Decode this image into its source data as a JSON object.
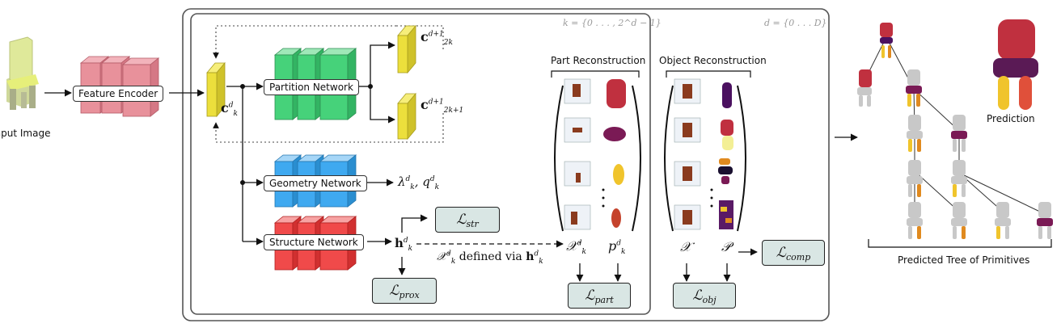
{
  "labels": {
    "input_image": "Input Image",
    "feature_encoder": "Feature Encoder",
    "partition_network": "Partition Network",
    "geometry_network": "Geometry Network",
    "structure_network": "Structure Network",
    "part_reconstruction": "Part Reconstruction",
    "object_reconstruction": "Object Reconstruction",
    "prediction": "Prediction",
    "predicted_tree": "Predicted Tree of Primitives",
    "k_range": "k = {0 . . . , 2^d − 1}",
    "d_range": "d = {0 . . . D}",
    "defined_via": "defined via"
  },
  "losses": {
    "str": "str",
    "prox": "prox",
    "part": "part",
    "obj": "obj",
    "comp": "comp"
  },
  "colors": {
    "encoder": "#e8919b",
    "partition": "#46d27a",
    "geometry": "#3fa9f0",
    "structure": "#f04a4a",
    "feature_vector": "#ecdf3c",
    "loss_fill": "#d9e6e4"
  }
}
